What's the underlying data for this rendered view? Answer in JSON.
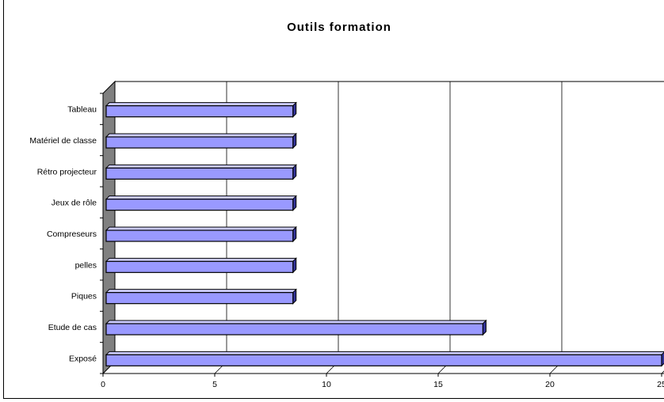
{
  "chart_data": {
    "type": "bar",
    "orientation": "horizontal",
    "style": "3d",
    "title": "Outils formation",
    "categories": [
      "Tableau",
      "Matériel de classe",
      "Rétro projecteur",
      "Jeux de rôle",
      "Compreseurs",
      "pelles",
      "Piques",
      "Etude de cas",
      "Exposé"
    ],
    "values": [
      8.5,
      8.5,
      8.5,
      8.5,
      8.5,
      8.5,
      8.5,
      17,
      25
    ],
    "xlim": [
      0,
      25
    ],
    "xticks": [
      "0",
      "5",
      "10",
      "15",
      "20",
      "25"
    ],
    "grid": "vertical",
    "legend": "none",
    "colors": {
      "bar_face": "#9999ff",
      "bar_side": "#333399",
      "wall": "#808080",
      "gridline": "#000000"
    }
  }
}
